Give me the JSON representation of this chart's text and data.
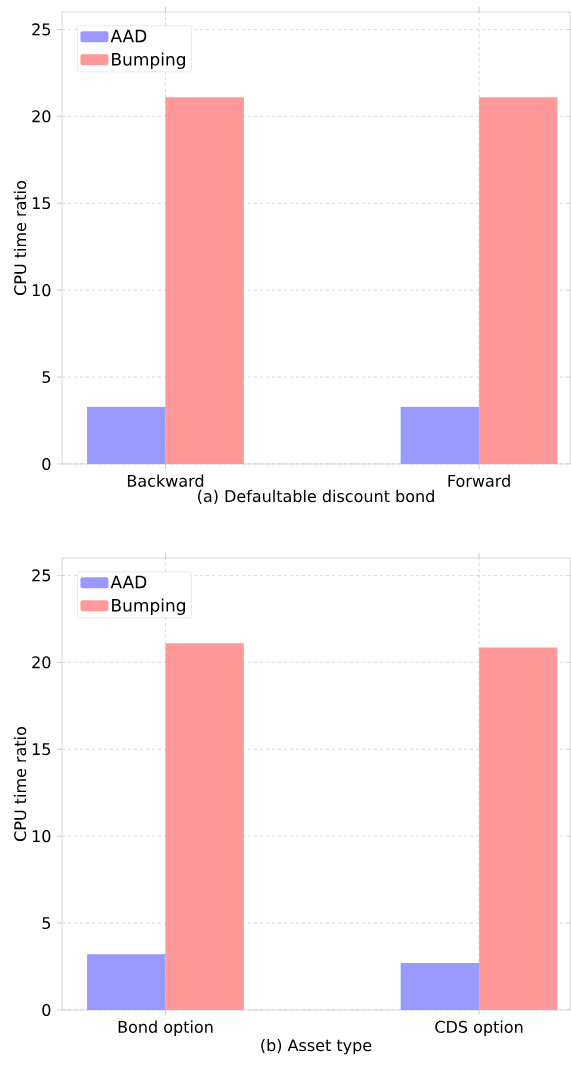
{
  "chart_data": [
    {
      "type": "bar",
      "xlabel": "(a) Defaultable discount bond",
      "ylabel": "CPU time ratio",
      "categories": [
        "Backward",
        "Forward"
      ],
      "series": [
        {
          "name": "AAD",
          "color": "#9999ff",
          "values": [
            3.3,
            3.3
          ]
        },
        {
          "name": "Bumping",
          "color": "#ff9999",
          "values": [
            21.1,
            21.1
          ]
        }
      ],
      "ylim": [
        0,
        26
      ],
      "yticks": [
        0,
        5,
        10,
        15,
        20,
        25
      ],
      "grid": true,
      "legend": "top left"
    },
    {
      "type": "bar",
      "xlabel": "(b) Asset type",
      "ylabel": "CPU time ratio",
      "categories": [
        "Bond option",
        "CDS option"
      ],
      "series": [
        {
          "name": "AAD",
          "color": "#9999ff",
          "values": [
            3.2,
            2.7
          ]
        },
        {
          "name": "Bumping",
          "color": "#ff9999",
          "values": [
            21.1,
            20.85
          ]
        }
      ],
      "ylim": [
        0,
        26
      ],
      "yticks": [
        0,
        5,
        10,
        15,
        20,
        25
      ],
      "grid": true,
      "legend": "top left"
    }
  ]
}
